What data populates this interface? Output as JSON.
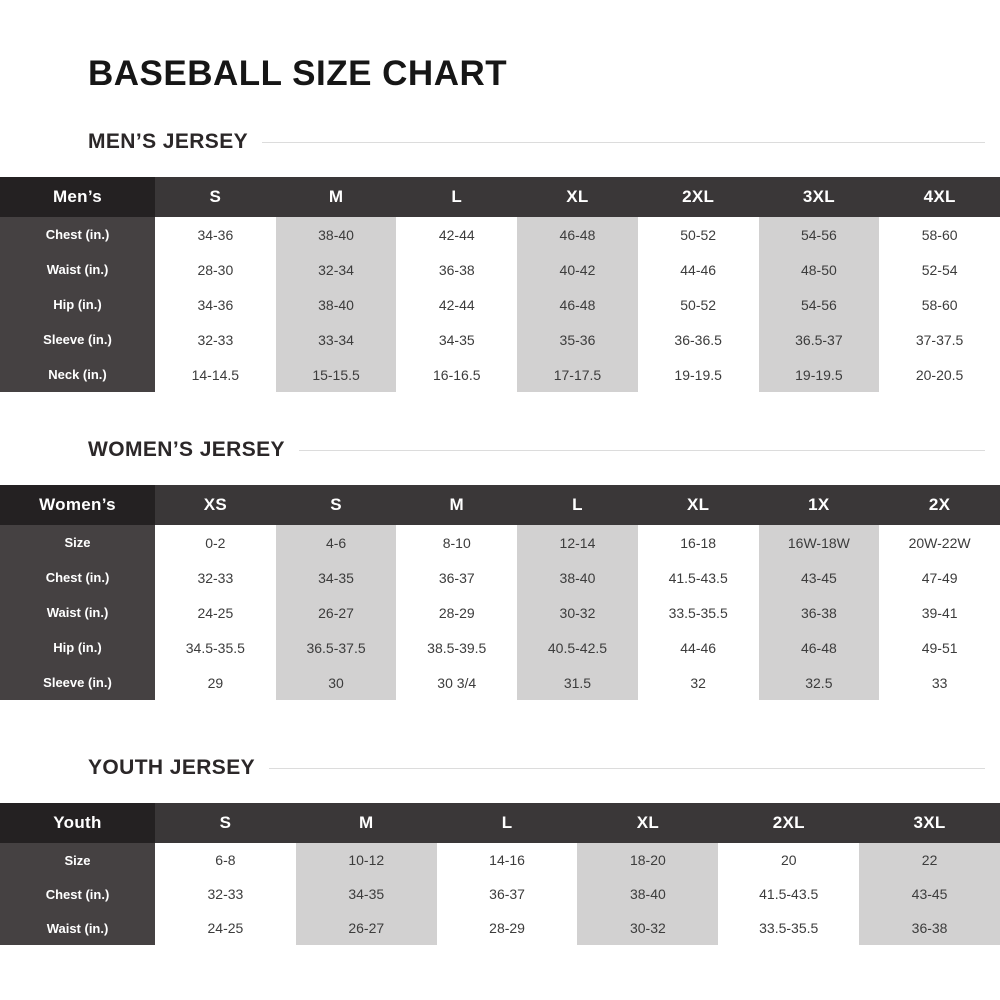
{
  "page_title": "BASEBALL SIZE CHART",
  "colors": {
    "corner_header_bg": "#242122",
    "size_header_bg": "#3a3738",
    "row_label_bg": "#454142",
    "shaded_column_bg": "#d2d1d1",
    "data_text": "#3c3c3c",
    "heading_text": "#2b2728",
    "divider_line": "#dcdcdc"
  },
  "chart_data": [
    {
      "type": "table",
      "title": "MEN’S JERSEY",
      "corner_label": "Men’s",
      "columns": [
        "S",
        "M",
        "L",
        "XL",
        "2XL",
        "3XL",
        "4XL"
      ],
      "shaded_columns": [
        1,
        3,
        5
      ],
      "rows": [
        {
          "label": "Chest (in.)",
          "values": [
            "34-36",
            "38-40",
            "42-44",
            "46-48",
            "50-52",
            "54-56",
            "58-60"
          ]
        },
        {
          "label": "Waist (in.)",
          "values": [
            "28-30",
            "32-34",
            "36-38",
            "40-42",
            "44-46",
            "48-50",
            "52-54"
          ]
        },
        {
          "label": "Hip (in.)",
          "values": [
            "34-36",
            "38-40",
            "42-44",
            "46-48",
            "50-52",
            "54-56",
            "58-60"
          ]
        },
        {
          "label": "Sleeve (in.)",
          "values": [
            "32-33",
            "33-34",
            "34-35",
            "35-36",
            "36-36.5",
            "36.5-37",
            "37-37.5"
          ]
        },
        {
          "label": "Neck (in.)",
          "values": [
            "14-14.5",
            "15-15.5",
            "16-16.5",
            "17-17.5",
            "19-19.5",
            "19-19.5",
            "20-20.5"
          ]
        }
      ]
    },
    {
      "type": "table",
      "title": "WOMEN’S JERSEY",
      "corner_label": "Women’s",
      "columns": [
        "XS",
        "S",
        "M",
        "L",
        "XL",
        "1X",
        "2X"
      ],
      "shaded_columns": [
        1,
        3,
        5
      ],
      "rows": [
        {
          "label": "Size",
          "values": [
            "0-2",
            "4-6",
            "8-10",
            "12-14",
            "16-18",
            "16W-18W",
            "20W-22W"
          ]
        },
        {
          "label": "Chest (in.)",
          "values": [
            "32-33",
            "34-35",
            "36-37",
            "38-40",
            "41.5-43.5",
            "43-45",
            "47-49"
          ]
        },
        {
          "label": "Waist (in.)",
          "values": [
            "24-25",
            "26-27",
            "28-29",
            "30-32",
            "33.5-35.5",
            "36-38",
            "39-41"
          ]
        },
        {
          "label": "Hip (in.)",
          "values": [
            "34.5-35.5",
            "36.5-37.5",
            "38.5-39.5",
            "40.5-42.5",
            "44-46",
            "46-48",
            "49-51"
          ]
        },
        {
          "label": "Sleeve (in.)",
          "values": [
            "29",
            "30",
            "30 3/4",
            "31.5",
            "32",
            "32.5",
            "33"
          ]
        }
      ]
    },
    {
      "type": "table",
      "title": "YOUTH JERSEY",
      "corner_label": "Youth",
      "columns": [
        "S",
        "M",
        "L",
        "XL",
        "2XL",
        "3XL"
      ],
      "shaded_columns": [
        1,
        3,
        5
      ],
      "rows": [
        {
          "label": "Size",
          "values": [
            "6-8",
            "10-12",
            "14-16",
            "18-20",
            "20",
            "22"
          ]
        },
        {
          "label": "Chest (in.)",
          "values": [
            "32-33",
            "34-35",
            "36-37",
            "38-40",
            "41.5-43.5",
            "43-45"
          ]
        },
        {
          "label": "Waist (in.)",
          "values": [
            "24-25",
            "26-27",
            "28-29",
            "30-32",
            "33.5-35.5",
            "36-38"
          ]
        }
      ]
    }
  ]
}
